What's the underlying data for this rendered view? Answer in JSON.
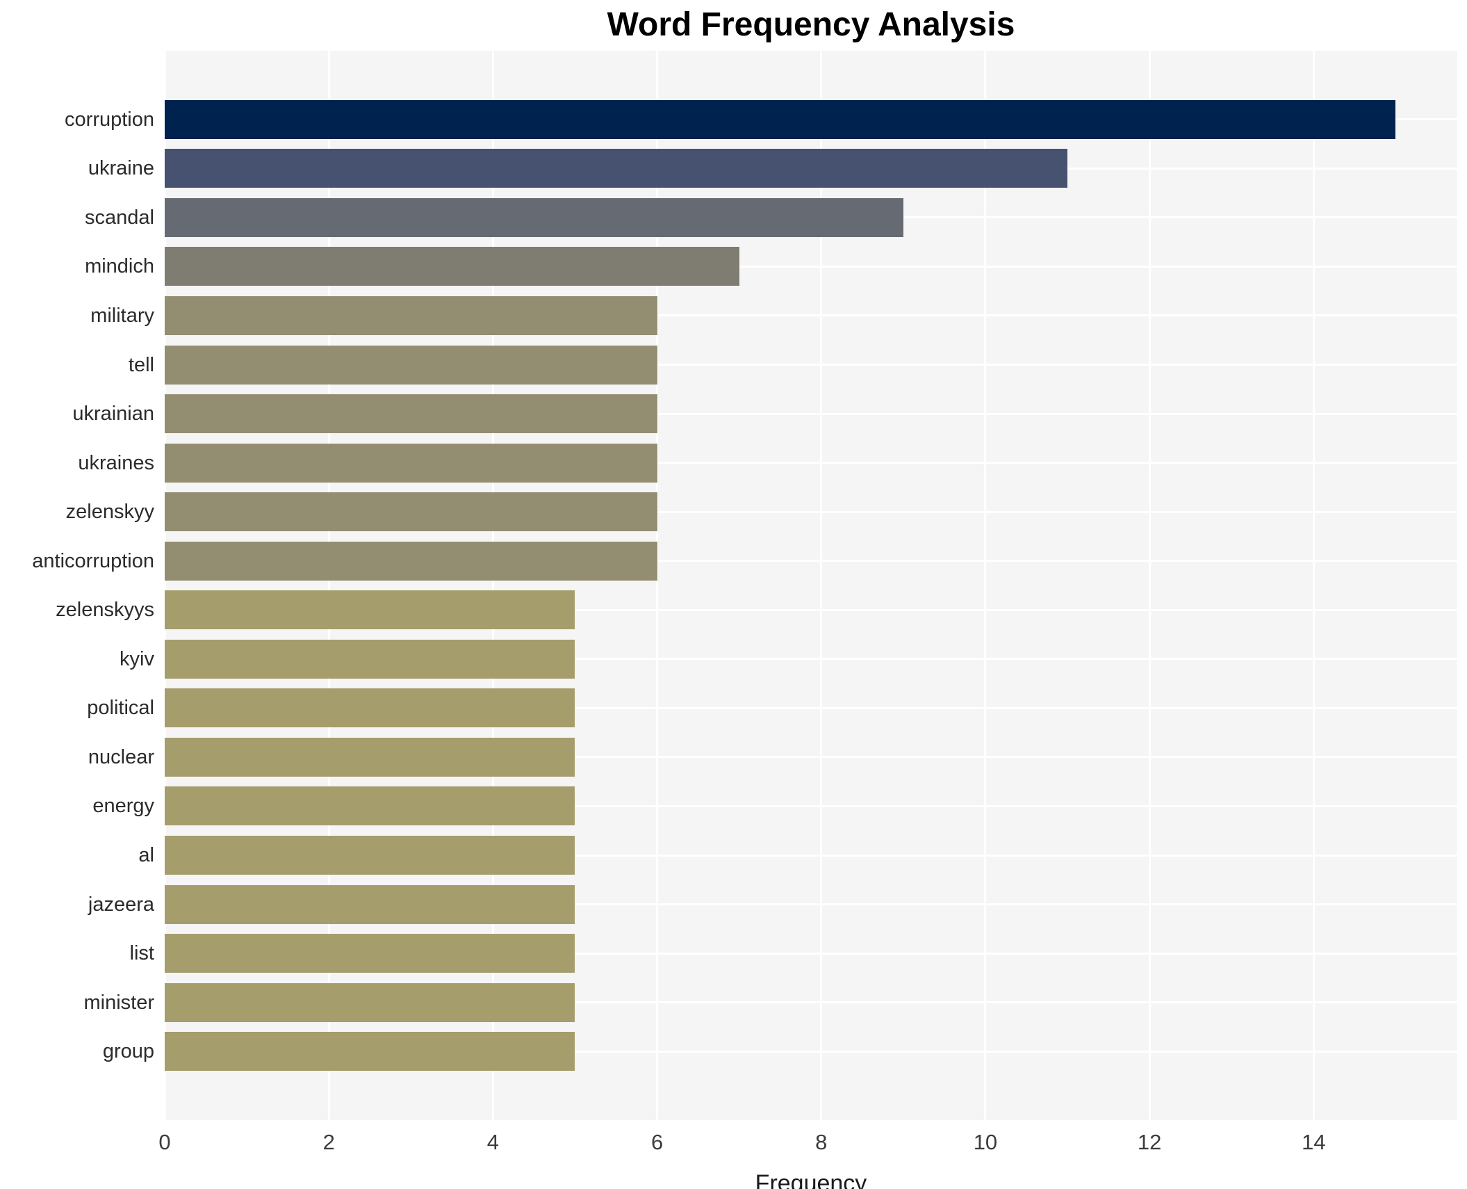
{
  "title": "Word Frequency Analysis",
  "xlabel": "Frequency",
  "chart_data": {
    "type": "bar",
    "orientation": "horizontal",
    "title": "Word Frequency Analysis",
    "xlabel": "Frequency",
    "ylabel": "",
    "categories": [
      "corruption",
      "ukraine",
      "scandal",
      "mindich",
      "military",
      "tell",
      "ukrainian",
      "ukraines",
      "zelenskyy",
      "anticorruption",
      "zelenskyys",
      "kyiv",
      "political",
      "nuclear",
      "energy",
      "al",
      "jazeera",
      "list",
      "minister",
      "group"
    ],
    "values": [
      15,
      11,
      9,
      7,
      6,
      6,
      6,
      6,
      6,
      6,
      5,
      5,
      5,
      5,
      5,
      5,
      5,
      5,
      5,
      5
    ],
    "bar_colors": [
      "#00224e",
      "#465270",
      "#666a72",
      "#7f7d72",
      "#938d72",
      "#938d72",
      "#938d72",
      "#938d72",
      "#938d72",
      "#938d72",
      "#a59d6c",
      "#a59d6c",
      "#a59d6c",
      "#a59d6c",
      "#a59d6c",
      "#a59d6c",
      "#a59d6c",
      "#a59d6c",
      "#a59d6c",
      "#a59d6c"
    ],
    "xticks": [
      0,
      2,
      4,
      6,
      8,
      10,
      12,
      14
    ],
    "xlim": [
      0,
      15.75
    ],
    "grid": true,
    "legend": false,
    "plot_background": "#f5f5f6",
    "grid_color": "#ffffff",
    "figure_background": "#ffffff"
  }
}
